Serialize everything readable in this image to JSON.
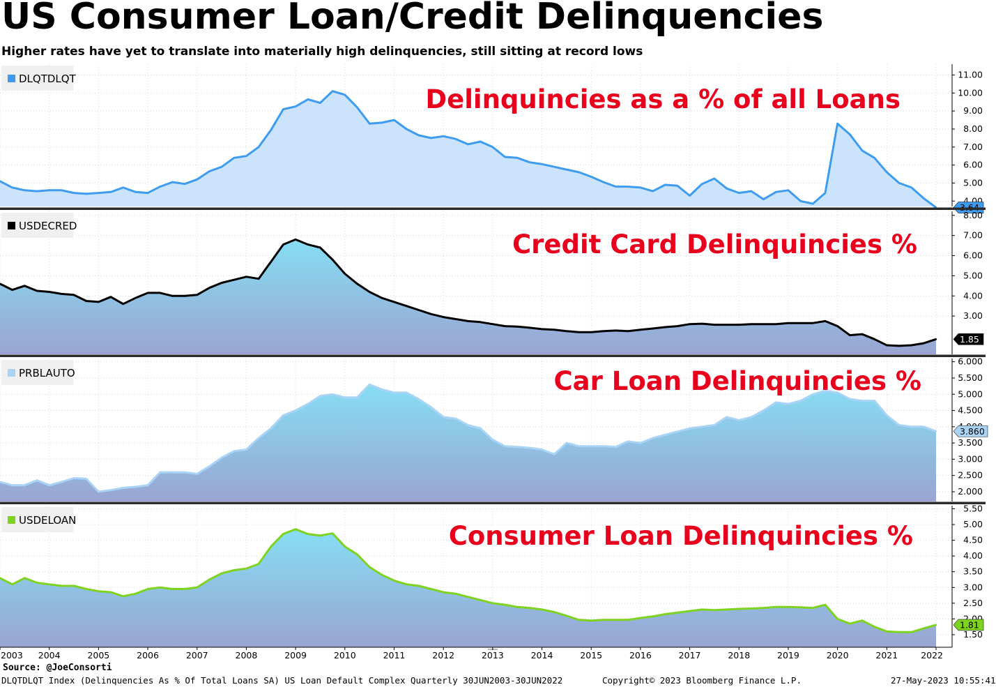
{
  "title": "US Consumer Loan/Credit Delinquencies",
  "subtitle": "Higher rates have yet to translate into materially high delinquencies, still sitting at record lows",
  "source": "Source: @JoeConsorti",
  "footer": {
    "left": "DLQTDLQT Index (Delinquencies As % Of Total Loans SA) US Loan Default Complex  Quarterly 30JUN2003-30JUN2022",
    "center": "Copyright© 2023 Bloomberg Finance L.P.",
    "right": "27-May-2023 10:55:41"
  },
  "colors": {
    "panel1_line": "#3d9cf0",
    "panel1_fill": "#cce4fb",
    "panel2_line": "#000000",
    "panel3_line": "#a9d4f5",
    "panel4_line": "#7ed321",
    "annotation": "#e8001c",
    "gradient_top": "#86def4",
    "gradient_bottom": "#9aa4d2"
  },
  "x_axis": {
    "years": [
      "2003",
      "2004",
      "2005",
      "2006",
      "2007",
      "2008",
      "2009",
      "2010",
      "2011",
      "2012",
      "2013",
      "2014",
      "2015",
      "2016",
      "2017",
      "2018",
      "2019",
      "2020",
      "2021",
      "2022"
    ]
  },
  "chart_data": [
    {
      "type": "area",
      "legend": "DLQTDLQT",
      "annotation": "Delinquincies as a % of all Loans",
      "last_value_label": "3.64",
      "ylim": [
        3.7,
        11.6
      ],
      "ticks": [
        "4.00",
        "5.00",
        "6.00",
        "7.00",
        "8.00",
        "9.00",
        "10.00",
        "11.00"
      ],
      "x": [
        2003.0,
        2003.25,
        2003.5,
        2003.75,
        2004.0,
        2004.25,
        2004.5,
        2004.75,
        2005.0,
        2005.25,
        2005.5,
        2005.75,
        2006.0,
        2006.25,
        2006.5,
        2006.75,
        2007.0,
        2007.25,
        2007.5,
        2007.75,
        2008.0,
        2008.25,
        2008.5,
        2008.75,
        2009.0,
        2009.25,
        2009.5,
        2009.75,
        2010.0,
        2010.25,
        2010.5,
        2010.75,
        2011.0,
        2011.25,
        2011.5,
        2011.75,
        2012.0,
        2012.25,
        2012.5,
        2012.75,
        2013.0,
        2013.25,
        2013.5,
        2013.75,
        2014.0,
        2014.25,
        2014.5,
        2014.75,
        2015.0,
        2015.25,
        2015.5,
        2015.75,
        2016.0,
        2016.25,
        2016.5,
        2016.75,
        2017.0,
        2017.25,
        2017.5,
        2017.75,
        2018.0,
        2018.25,
        2018.5,
        2018.75,
        2019.0,
        2019.25,
        2019.5,
        2019.75,
        2020.0,
        2020.25,
        2020.5,
        2020.75,
        2021.0,
        2021.25,
        2021.5,
        2021.75,
        2022.0
      ],
      "values": [
        5.1,
        4.75,
        4.6,
        4.55,
        4.6,
        4.6,
        4.45,
        4.4,
        4.45,
        4.5,
        4.75,
        4.5,
        4.45,
        4.8,
        5.05,
        4.95,
        5.2,
        5.65,
        5.9,
        6.4,
        6.5,
        7.0,
        7.95,
        9.1,
        9.25,
        9.65,
        9.45,
        10.1,
        9.9,
        9.2,
        8.3,
        8.35,
        8.5,
        8.0,
        7.65,
        7.5,
        7.6,
        7.45,
        7.15,
        7.3,
        7.0,
        6.45,
        6.4,
        6.15,
        6.05,
        5.9,
        5.75,
        5.6,
        5.35,
        5.05,
        4.8,
        4.8,
        4.75,
        4.55,
        4.9,
        4.85,
        4.3,
        4.95,
        5.25,
        4.7,
        4.45,
        4.55,
        4.1,
        4.5,
        4.6,
        4.0,
        3.85,
        4.45,
        8.3,
        7.7,
        6.8,
        6.4,
        5.6,
        5.0,
        4.75,
        4.15,
        3.64
      ]
    },
    {
      "type": "area",
      "legend": "USDECRED",
      "annotation": "Credit Card Delinquincies %",
      "last_value_label": "1.85",
      "ylim": [
        1.1,
        8.2
      ],
      "ticks": [
        "3.00",
        "4.00",
        "5.00",
        "6.00",
        "7.00",
        "8.00"
      ],
      "x": [
        2003.0,
        2003.25,
        2003.5,
        2003.75,
        2004.0,
        2004.25,
        2004.5,
        2004.75,
        2005.0,
        2005.25,
        2005.5,
        2005.75,
        2006.0,
        2006.25,
        2006.5,
        2006.75,
        2007.0,
        2007.25,
        2007.5,
        2007.75,
        2008.0,
        2008.25,
        2008.5,
        2008.75,
        2009.0,
        2009.25,
        2009.5,
        2009.75,
        2010.0,
        2010.25,
        2010.5,
        2010.75,
        2011.0,
        2011.25,
        2011.5,
        2011.75,
        2012.0,
        2012.25,
        2012.5,
        2012.75,
        2013.0,
        2013.25,
        2013.5,
        2013.75,
        2014.0,
        2014.25,
        2014.5,
        2014.75,
        2015.0,
        2015.25,
        2015.5,
        2015.75,
        2016.0,
        2016.25,
        2016.5,
        2016.75,
        2017.0,
        2017.25,
        2017.5,
        2017.75,
        2018.0,
        2018.25,
        2018.5,
        2018.75,
        2019.0,
        2019.25,
        2019.5,
        2019.75,
        2020.0,
        2020.25,
        2020.5,
        2020.75,
        2021.0,
        2021.25,
        2021.5,
        2021.75,
        2022.0
      ],
      "values": [
        4.6,
        4.3,
        4.5,
        4.25,
        4.2,
        4.1,
        4.05,
        3.75,
        3.7,
        3.95,
        3.6,
        3.9,
        4.15,
        4.15,
        4.0,
        4.0,
        4.05,
        4.4,
        4.65,
        4.8,
        4.95,
        4.85,
        5.7,
        6.55,
        6.8,
        6.55,
        6.4,
        5.8,
        5.1,
        4.6,
        4.2,
        3.9,
        3.7,
        3.5,
        3.3,
        3.1,
        2.95,
        2.85,
        2.75,
        2.7,
        2.6,
        2.5,
        2.48,
        2.42,
        2.35,
        2.32,
        2.25,
        2.2,
        2.2,
        2.25,
        2.28,
        2.25,
        2.32,
        2.38,
        2.45,
        2.5,
        2.6,
        2.62,
        2.57,
        2.57,
        2.57,
        2.6,
        2.6,
        2.6,
        2.65,
        2.65,
        2.65,
        2.75,
        2.5,
        2.05,
        2.1,
        1.85,
        1.55,
        1.52,
        1.55,
        1.65,
        1.85
      ]
    },
    {
      "type": "area",
      "legend": "PRBLAUTO",
      "annotation": "Car Loan Delinquincies %",
      "last_value_label": "3.860",
      "ylim": [
        1.7,
        6.1
      ],
      "ticks": [
        "2.000",
        "2.500",
        "3.000",
        "3.500",
        "4.000",
        "4.500",
        "5.000",
        "5.500",
        "6.000"
      ],
      "x": [
        2003.0,
        2003.25,
        2003.5,
        2003.75,
        2004.0,
        2004.25,
        2004.5,
        2004.75,
        2005.0,
        2005.25,
        2005.5,
        2005.75,
        2006.0,
        2006.25,
        2006.5,
        2006.75,
        2007.0,
        2007.25,
        2007.5,
        2007.75,
        2008.0,
        2008.25,
        2008.5,
        2008.75,
        2009.0,
        2009.25,
        2009.5,
        2009.75,
        2010.0,
        2010.25,
        2010.5,
        2010.75,
        2011.0,
        2011.25,
        2011.5,
        2011.75,
        2012.0,
        2012.25,
        2012.5,
        2012.75,
        2013.0,
        2013.25,
        2013.5,
        2013.75,
        2014.0,
        2014.25,
        2014.5,
        2014.75,
        2015.0,
        2015.25,
        2015.5,
        2015.75,
        2016.0,
        2016.25,
        2016.5,
        2016.75,
        2017.0,
        2017.25,
        2017.5,
        2017.75,
        2018.0,
        2018.25,
        2018.5,
        2018.75,
        2019.0,
        2019.25,
        2019.5,
        2019.75,
        2020.0,
        2020.25,
        2020.5,
        2020.75,
        2021.0,
        2021.25,
        2021.5,
        2021.75,
        2022.0
      ],
      "values": [
        2.3,
        2.2,
        2.2,
        2.35,
        2.2,
        2.3,
        2.42,
        2.4,
        2.0,
        2.05,
        2.12,
        2.15,
        2.2,
        2.6,
        2.6,
        2.6,
        2.55,
        2.78,
        3.05,
        3.25,
        3.3,
        3.65,
        3.95,
        4.35,
        4.5,
        4.7,
        4.95,
        5.0,
        4.9,
        4.9,
        5.3,
        5.15,
        5.05,
        5.05,
        4.85,
        4.6,
        4.3,
        4.25,
        4.05,
        3.95,
        3.6,
        3.4,
        3.38,
        3.35,
        3.3,
        3.15,
        3.5,
        3.4,
        3.4,
        3.4,
        3.38,
        3.55,
        3.5,
        3.65,
        3.75,
        3.85,
        3.95,
        4.0,
        4.05,
        4.3,
        4.2,
        4.3,
        4.5,
        4.75,
        4.7,
        4.8,
        5.0,
        5.1,
        5.05,
        4.85,
        4.8,
        4.8,
        4.35,
        4.05,
        4.0,
        4.0,
        3.86
      ]
    },
    {
      "type": "area",
      "legend": "USDELOAN",
      "annotation": "Consumer Loan Delinquincies %",
      "last_value_label": "1.81",
      "ylim": [
        1.1,
        5.6
      ],
      "ticks": [
        "1.50",
        "2.00",
        "2.50",
        "3.00",
        "3.50",
        "4.00",
        "4.50",
        "5.00",
        "5.50"
      ],
      "x": [
        2003.0,
        2003.25,
        2003.5,
        2003.75,
        2004.0,
        2004.25,
        2004.5,
        2004.75,
        2005.0,
        2005.25,
        2005.5,
        2005.75,
        2006.0,
        2006.25,
        2006.5,
        2006.75,
        2007.0,
        2007.25,
        2007.5,
        2007.75,
        2008.0,
        2008.25,
        2008.5,
        2008.75,
        2009.0,
        2009.25,
        2009.5,
        2009.75,
        2010.0,
        2010.25,
        2010.5,
        2010.75,
        2011.0,
        2011.25,
        2011.5,
        2011.75,
        2012.0,
        2012.25,
        2012.5,
        2012.75,
        2013.0,
        2013.25,
        2013.5,
        2013.75,
        2014.0,
        2014.25,
        2014.5,
        2014.75,
        2015.0,
        2015.25,
        2015.5,
        2015.75,
        2016.0,
        2016.25,
        2016.5,
        2016.75,
        2017.0,
        2017.25,
        2017.5,
        2017.75,
        2018.0,
        2018.25,
        2018.5,
        2018.75,
        2019.0,
        2019.25,
        2019.5,
        2019.75,
        2020.0,
        2020.25,
        2020.5,
        2020.75,
        2021.0,
        2021.25,
        2021.5,
        2021.75,
        2022.0
      ],
      "values": [
        3.3,
        3.1,
        3.3,
        3.15,
        3.1,
        3.05,
        3.05,
        2.95,
        2.88,
        2.85,
        2.72,
        2.8,
        2.95,
        3.0,
        2.95,
        2.95,
        3.0,
        3.25,
        3.45,
        3.55,
        3.6,
        3.75,
        4.3,
        4.7,
        4.85,
        4.7,
        4.65,
        4.72,
        4.3,
        4.05,
        3.65,
        3.4,
        3.22,
        3.1,
        3.05,
        2.95,
        2.85,
        2.8,
        2.7,
        2.6,
        2.5,
        2.45,
        2.38,
        2.35,
        2.3,
        2.22,
        2.1,
        1.97,
        1.95,
        1.97,
        1.97,
        1.97,
        2.03,
        2.08,
        2.15,
        2.2,
        2.25,
        2.3,
        2.28,
        2.3,
        2.32,
        2.33,
        2.35,
        2.38,
        2.38,
        2.37,
        2.35,
        2.45,
        2.0,
        1.85,
        1.95,
        1.75,
        1.6,
        1.58,
        1.58,
        1.7,
        1.81
      ]
    }
  ]
}
